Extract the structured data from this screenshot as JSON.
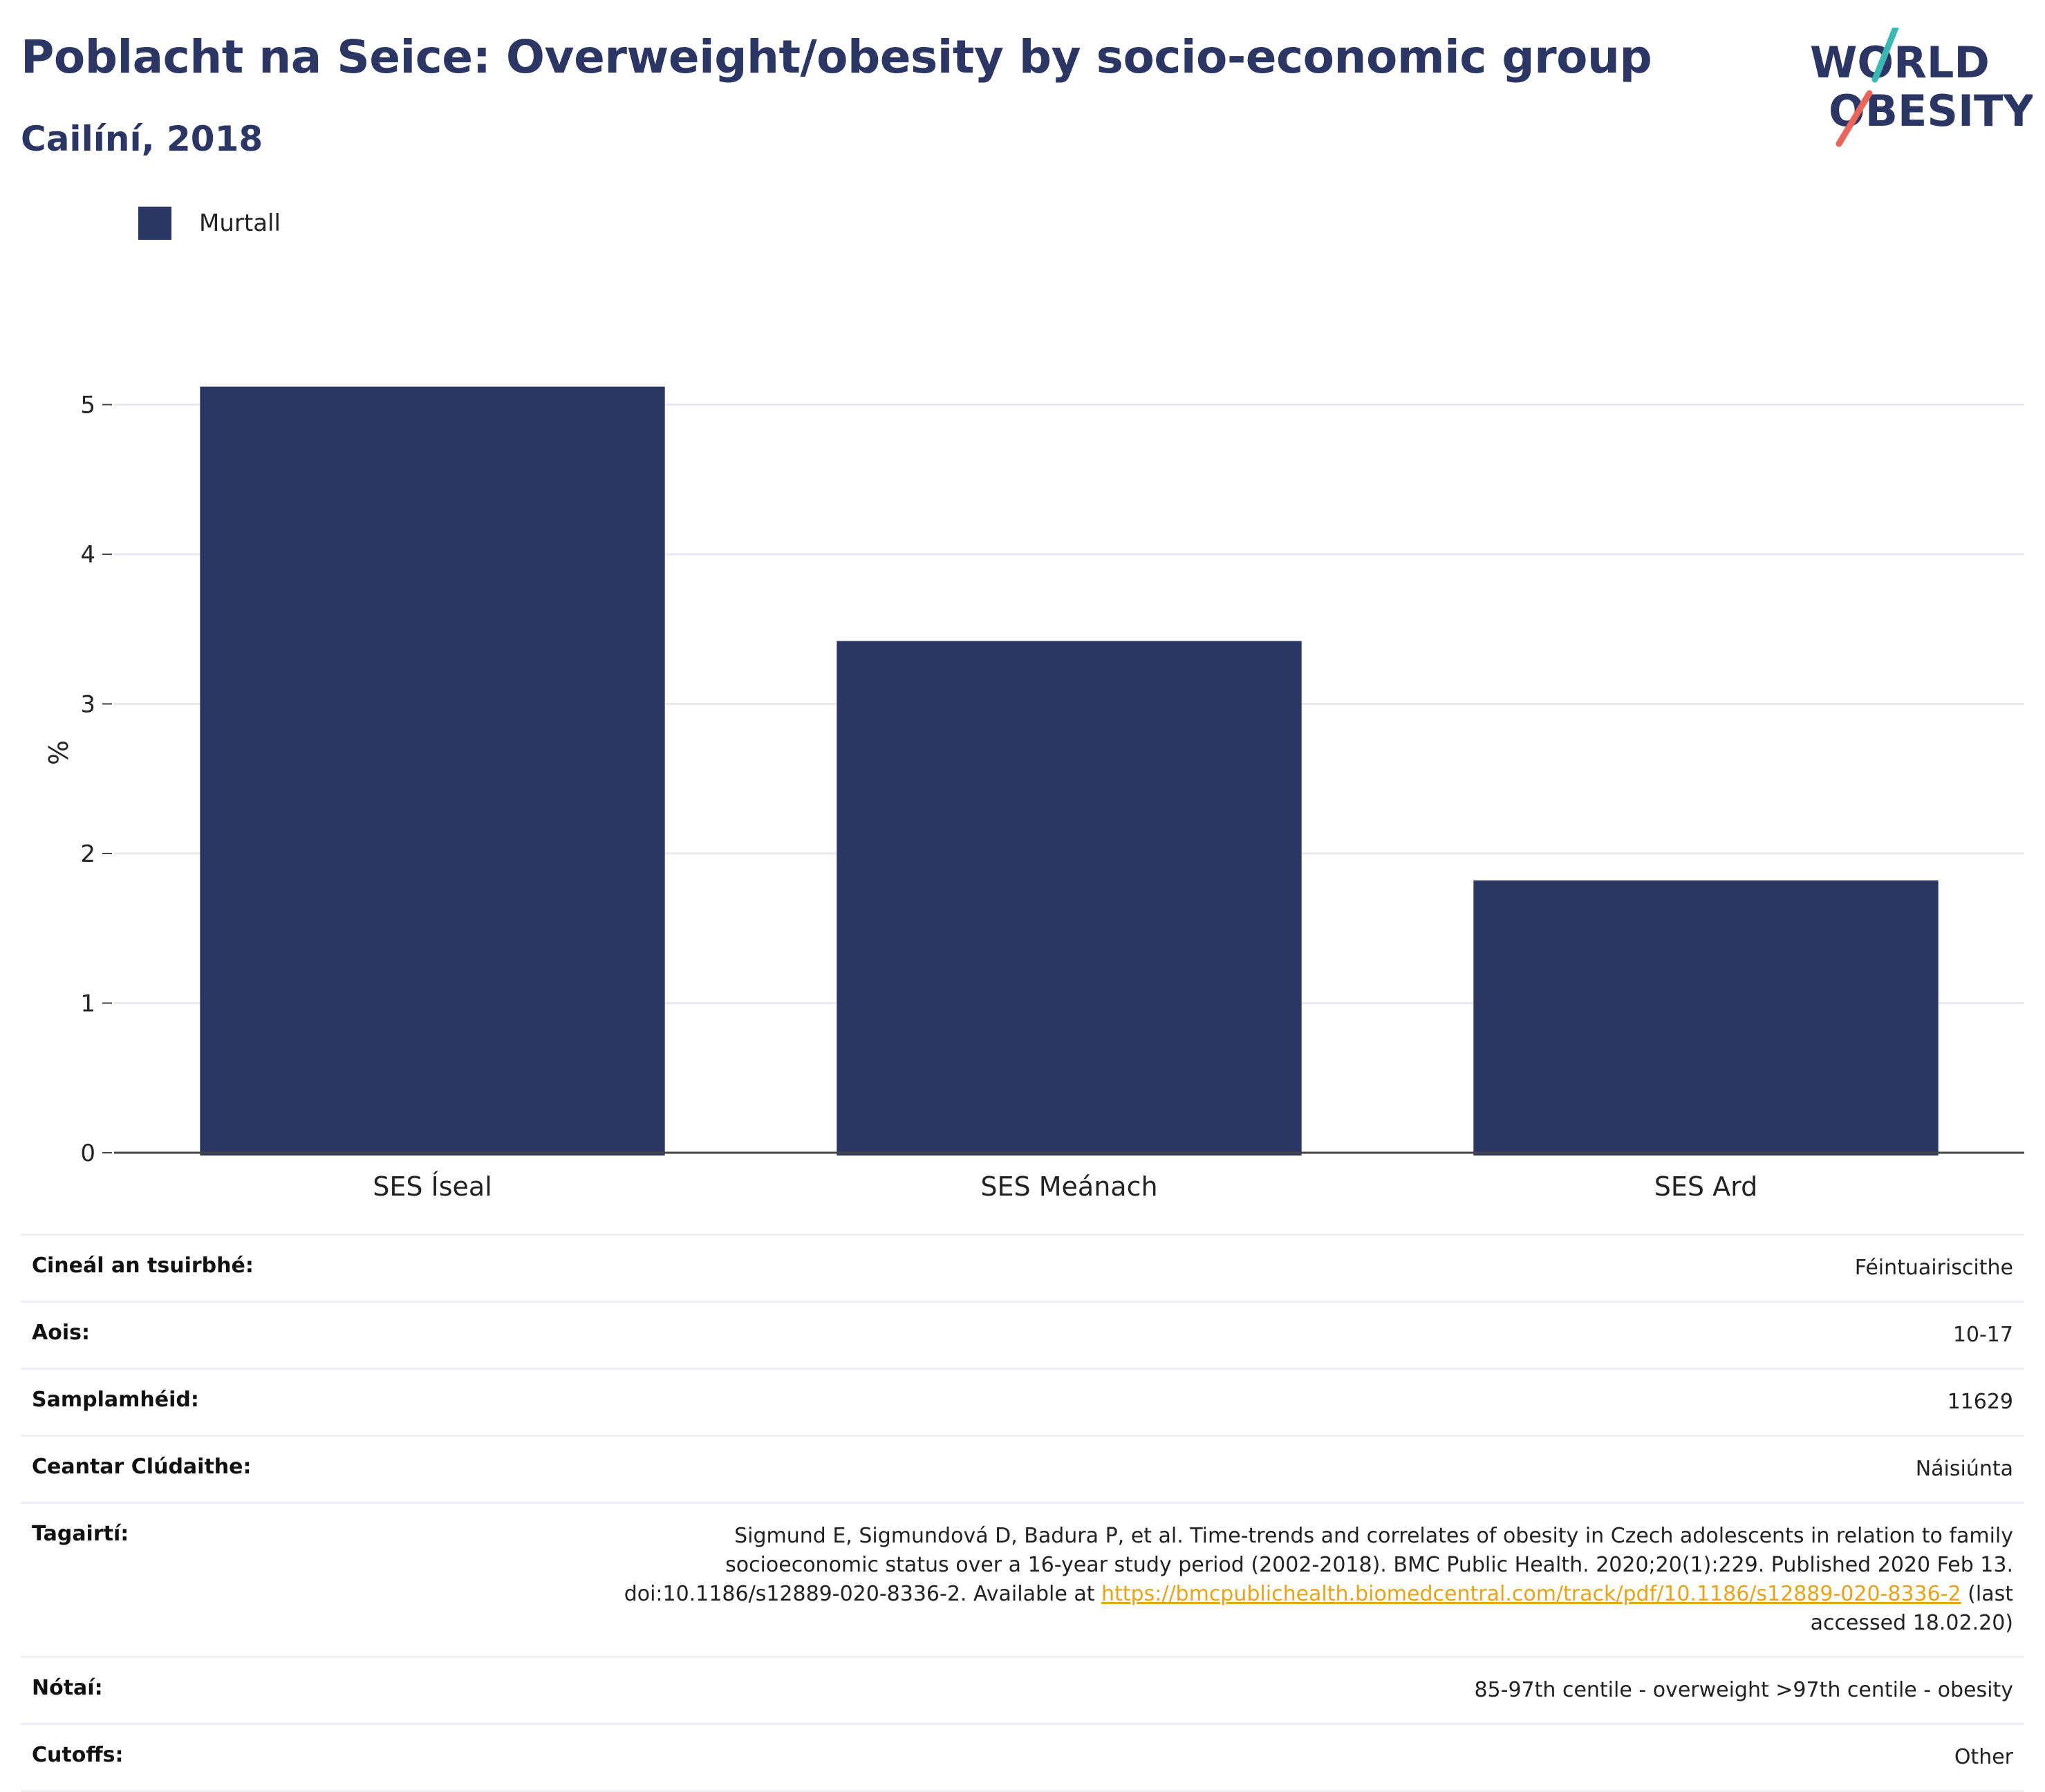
{
  "header": {
    "title": "Poblacht na Seice: Overweight/obesity by socio-economic group",
    "subtitle": "Cailíní, 2018"
  },
  "logo": {
    "line1": "WORLD",
    "line2": "OBESITY",
    "colors": {
      "text": "#2b3664",
      "slash_top": "#3bb8b3",
      "slash_bottom": "#e8665a"
    }
  },
  "legend": {
    "label": "Murtall"
  },
  "chart_data": {
    "type": "bar",
    "categories": [
      "SES Íseal",
      "SES Meánach",
      "SES Ard"
    ],
    "series": [
      {
        "name": "Murtall",
        "values": [
          5.12,
          3.42,
          1.82
        ],
        "color": "#2b3664"
      }
    ],
    "ylabel": "%",
    "xlabel": "",
    "ylim": [
      0,
      5.3
    ],
    "yticks": [
      0,
      1,
      2,
      3,
      4,
      5
    ],
    "grid": true,
    "legend_position": "top-left"
  },
  "meta": {
    "rows": [
      {
        "key": "Cineál an tsuirbhé:",
        "value": "Féintuairiscithe"
      },
      {
        "key": "Aois:",
        "value": "10-17"
      },
      {
        "key": "Samplamhéid:",
        "value": "11629"
      },
      {
        "key": "Ceantar Clúdaithe:",
        "value": "Náisiúnta"
      },
      {
        "key": "Tagairtí:",
        "value": "Sigmund E, Sigmundová D, Badura P, et al. Time-trends and correlates of obesity in Czech adolescents in relation to family socioeconomic status over a 16-year study period (2002-2018). BMC Public Health. 2020;20(1):229. Published 2020 Feb 13. doi:10.1186/s12889-020-8336-2. Available at ",
        "link": "https://bmcpublichealth.biomedcentral.com/track/pdf/10.1186/s12889-020-8336-2",
        "suffix": " (last accessed 18.02.20)"
      },
      {
        "key": "Nótaí:",
        "value": "85-97th centile - overweight >97th centile - obesity"
      },
      {
        "key": "Cutoffs:",
        "value": "Other"
      }
    ]
  }
}
